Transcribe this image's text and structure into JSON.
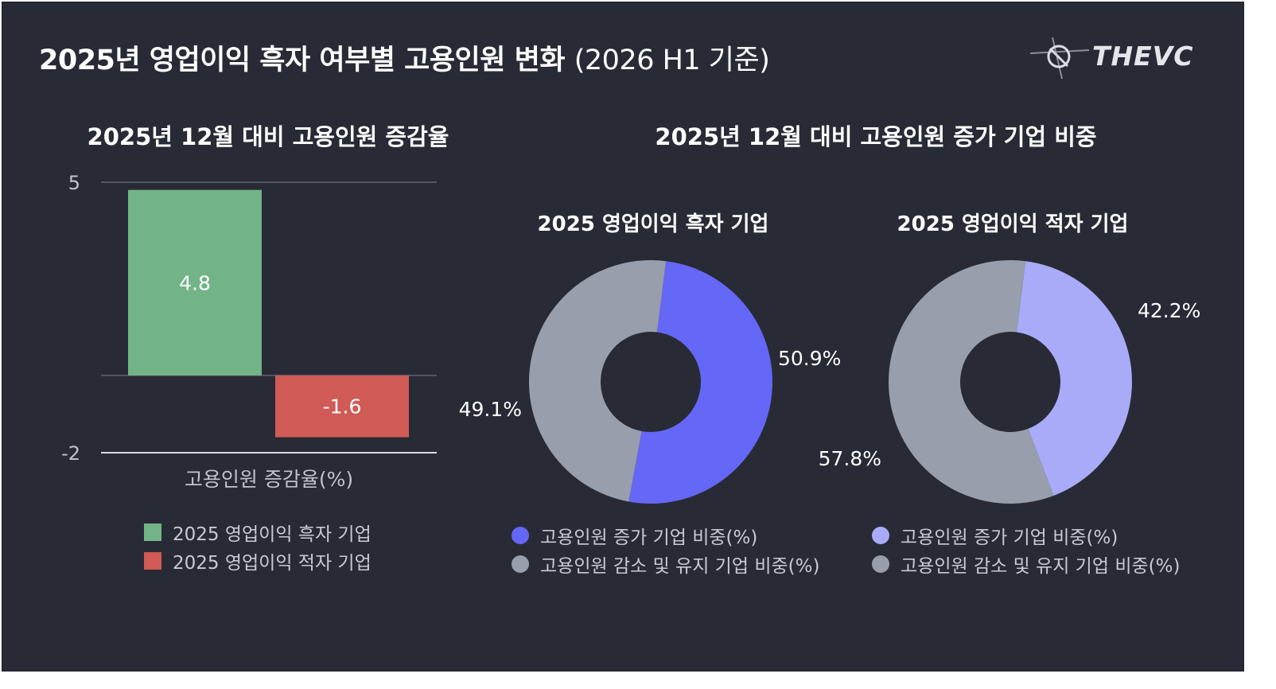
{
  "header": {
    "title": "2025년 영업이익 흑자 여부별 고용인원 변화",
    "title_suffix": "(2026 H1 기준)",
    "logo_text": "THEVC"
  },
  "left_panel": {
    "title": "2025년 12월 대비 고용인원 증감율",
    "legend": [
      {
        "label": "2025 영업이익 흑자 기업",
        "color": "#72b487"
      },
      {
        "label": "2025 영업이익 적자 기업",
        "color": "#d05a55"
      }
    ]
  },
  "right_panel": {
    "title": "2025년 12월 대비 고용인원 증가 기업 비중",
    "pie1_title": "2025 영업이익 흑자 기업",
    "pie2_title": "2025 영업이익 적자 기업",
    "legend1": [
      {
        "label": "고용인원 증가 기업 비중(%)",
        "color": "#6567f6"
      },
      {
        "label": "고용인원 감소 및 유지 기업 비중(%)",
        "color": "#989eab"
      }
    ],
    "legend2": [
      {
        "label": "고용인원 증가 기업 비중(%)",
        "color": "#a9abf8"
      },
      {
        "label": "고용인원 감소 및 유지 기업 비중(%)",
        "color": "#989eab"
      }
    ]
  },
  "chart_data": [
    {
      "type": "bar",
      "title": "2025년 12월 대비 고용인원 증감율",
      "xlabel": "고용인원 증감율(%)",
      "ylabel": "",
      "yticks": [
        "5",
        "-2"
      ],
      "ylim": [
        -2,
        5
      ],
      "series": [
        {
          "name": "2025 영업이익 흑자 기업",
          "values": [
            4.8
          ],
          "labels": [
            "4.8"
          ],
          "color": "#72b487"
        },
        {
          "name": "2025 영업이익 적자 기업",
          "values": [
            -1.6
          ],
          "labels": [
            "-1.6"
          ],
          "color": "#d05a55"
        }
      ]
    },
    {
      "type": "pie",
      "title": "2025 영업이익 흑자 기업",
      "slices": [
        {
          "name": "고용인원 증가 기업 비중(%)",
          "value": 50.9,
          "label": "50.9%",
          "color": "#6567f6"
        },
        {
          "name": "고용인원 감소 및 유지 기업 비중(%)",
          "value": 49.1,
          "label": "49.1%",
          "color": "#989eab"
        }
      ]
    },
    {
      "type": "pie",
      "title": "2025 영업이익 적자 기업",
      "slices": [
        {
          "name": "고용인원 증가 기업 비중(%)",
          "value": 42.2,
          "label": "42.2%",
          "color": "#a9abf8"
        },
        {
          "name": "고용인원 감소 및 유지 기업 비중(%)",
          "value": 57.8,
          "label": "57.8%",
          "color": "#989eab"
        }
      ]
    }
  ]
}
